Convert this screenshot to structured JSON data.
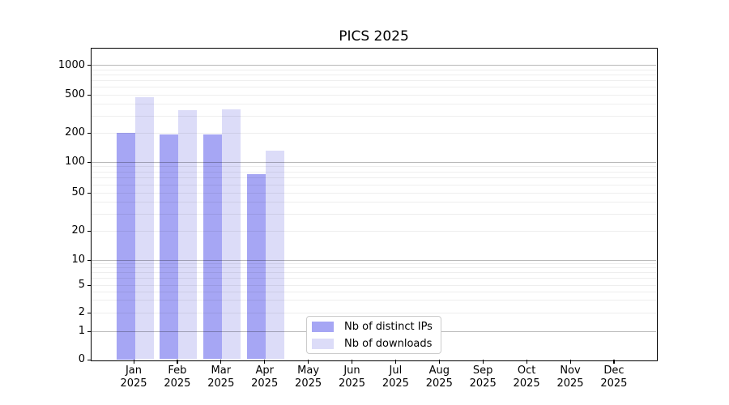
{
  "title": "PICS 2025",
  "chart_data": {
    "type": "bar",
    "title": "PICS 2025",
    "xlabel": "",
    "ylabel": "",
    "y_scale": "symlog",
    "y_ticks": [
      0,
      1,
      2,
      5,
      10,
      20,
      50,
      100,
      200,
      500,
      1000
    ],
    "grid": "horizontal major and minor gridlines",
    "legend_position": "inside bottom-center",
    "x_categories": [
      {
        "month": "Jan",
        "year": "2025"
      },
      {
        "month": "Feb",
        "year": "2025"
      },
      {
        "month": "Mar",
        "year": "2025"
      },
      {
        "month": "Apr",
        "year": "2025"
      },
      {
        "month": "May",
        "year": "2025"
      },
      {
        "month": "Jun",
        "year": "2025"
      },
      {
        "month": "Jul",
        "year": "2025"
      },
      {
        "month": "Aug",
        "year": "2025"
      },
      {
        "month": "Sep",
        "year": "2025"
      },
      {
        "month": "Oct",
        "year": "2025"
      },
      {
        "month": "Nov",
        "year": "2025"
      },
      {
        "month": "Dec",
        "year": "2025"
      }
    ],
    "series": [
      {
        "name": "Nb of distinct IPs",
        "color": "#a6a6f4",
        "values": [
          200,
          190,
          190,
          75,
          null,
          null,
          null,
          null,
          null,
          null,
          null,
          null
        ]
      },
      {
        "name": "Nb of downloads",
        "color": "#dcdcf8",
        "values": [
          470,
          340,
          350,
          130,
          null,
          null,
          null,
          null,
          null,
          null,
          null,
          null
        ]
      }
    ]
  },
  "colors": {
    "background": "#ffffff",
    "axis": "#000000",
    "major_grid": "rgba(0,0,0,0.28)",
    "minor_grid": "rgba(0,0,0,0.065)"
  }
}
